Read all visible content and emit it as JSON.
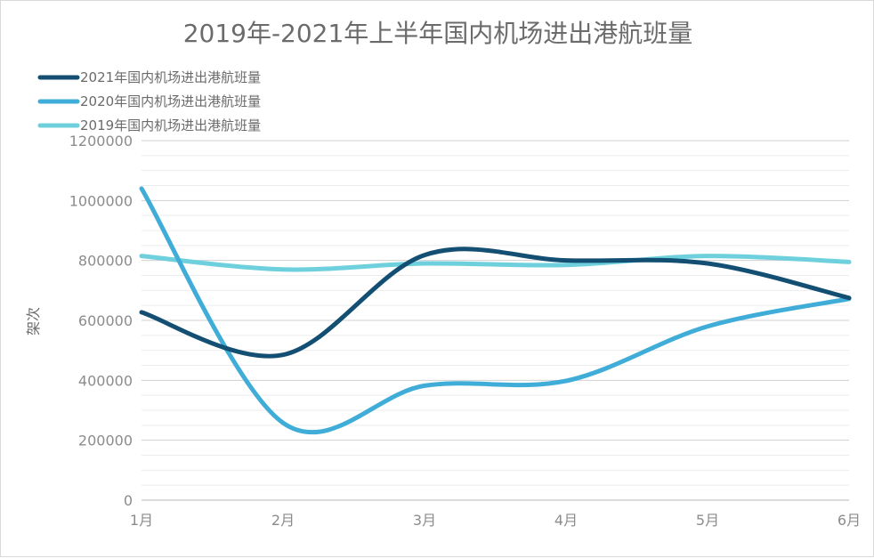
{
  "chart_data": {
    "type": "line",
    "title": "2019年-2021年上半年国内机场进出港航班量",
    "ylabel": "架次",
    "xlabel": "",
    "categories": [
      "1月",
      "2月",
      "3月",
      "4月",
      "5月",
      "6月"
    ],
    "ylim": [
      0,
      1200000
    ],
    "yticks": [
      0,
      200000,
      400000,
      600000,
      800000,
      1000000,
      1200000
    ],
    "ytick_labels": [
      "0",
      "200000",
      "400000",
      "600000",
      "800000",
      "1000000",
      "1200000"
    ],
    "grid": true,
    "smooth": true,
    "legend_position": "top-left",
    "series": [
      {
        "name": "2021年国内机场进出港航班量",
        "color": "#134e73",
        "values": [
          627000,
          485000,
          818000,
          800000,
          790000,
          675000
        ]
      },
      {
        "name": "2020年国内机场进出港航班量",
        "color": "#3fadd7",
        "values": [
          1040000,
          258000,
          382000,
          398000,
          580000,
          672000
        ]
      },
      {
        "name": "2019年国内机场进出港航班量",
        "color": "#6dd0dc",
        "values": [
          815000,
          770000,
          790000,
          785000,
          815000,
          795000
        ]
      }
    ]
  }
}
